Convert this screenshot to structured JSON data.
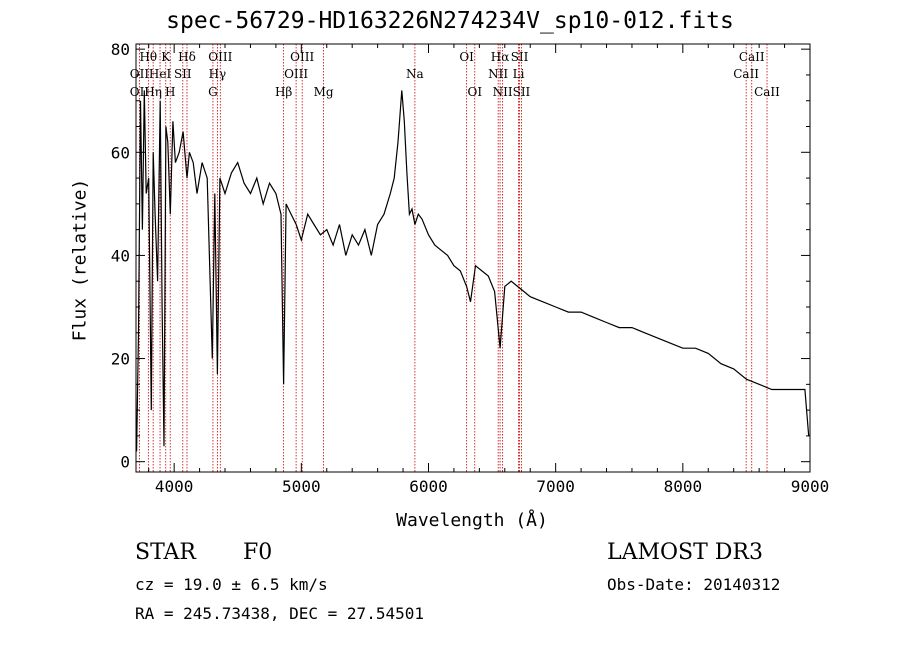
{
  "chart_data": {
    "type": "line",
    "title": "spec-56729-HD163226N274234V_sp10-012.fits",
    "xlabel": "Wavelength (Å)",
    "ylabel": "Flux (relative)",
    "xlim": [
      3700,
      9000
    ],
    "ylim": [
      -2,
      81
    ],
    "x_ticks": [
      4000,
      5000,
      6000,
      7000,
      8000,
      9000
    ],
    "y_ticks": [
      0,
      20,
      40,
      60,
      80
    ],
    "grid": false,
    "line_color": "#000000",
    "marker_color": "#cc0000",
    "series": [
      {
        "x": [
          3705,
          3720,
          3735,
          3750,
          3765,
          3780,
          3800,
          3820,
          3835,
          3850,
          3870,
          3890,
          3905,
          3920,
          3935,
          3950,
          3970,
          3990,
          4010,
          4040,
          4070,
          4101,
          4120,
          4150,
          4180,
          4220,
          4260,
          4300,
          4320,
          4340,
          4360,
          4400,
          4450,
          4500,
          4550,
          4600,
          4650,
          4700,
          4750,
          4800,
          4840,
          4861,
          4880,
          4920,
          4960,
          5000,
          5050,
          5100,
          5150,
          5200,
          5250,
          5300,
          5350,
          5400,
          5450,
          5500,
          5550,
          5600,
          5650,
          5700,
          5730,
          5760,
          5790,
          5810,
          5830,
          5850,
          5870,
          5893,
          5920,
          5950,
          6000,
          6050,
          6100,
          6150,
          6200,
          6250,
          6300,
          6330,
          6370,
          6420,
          6470,
          6520,
          6563,
          6600,
          6650,
          6700,
          6750,
          6800,
          6900,
          7000,
          7100,
          7200,
          7300,
          7400,
          7500,
          7600,
          7700,
          7800,
          7900,
          8000,
          8100,
          8200,
          8300,
          8400,
          8500,
          8600,
          8700,
          8800,
          8900,
          8960,
          8990
        ],
        "y": [
          2,
          25,
          70,
          45,
          72,
          52,
          55,
          10,
          60,
          48,
          35,
          70,
          30,
          3,
          65,
          62,
          48,
          66,
          58,
          60,
          64,
          55,
          60,
          58,
          52,
          58,
          55,
          20,
          52,
          17,
          55,
          52,
          56,
          58,
          54,
          52,
          55,
          50,
          54,
          52,
          48,
          15,
          50,
          48,
          46,
          43,
          48,
          46,
          44,
          45,
          42,
          46,
          40,
          44,
          42,
          45,
          40,
          46,
          48,
          52,
          55,
          62,
          72,
          66,
          56,
          48,
          49,
          46,
          48,
          47,
          44,
          42,
          41,
          40,
          38,
          37,
          34,
          31,
          38,
          37,
          36,
          33,
          22,
          34,
          35,
          34,
          33,
          32,
          31,
          30,
          29,
          29,
          28,
          27,
          26,
          26,
          25,
          24,
          23,
          22,
          22,
          21,
          19,
          18,
          16,
          15,
          14,
          14,
          14,
          14,
          5
        ]
      }
    ],
    "lines": [
      {
        "label": "Hθ",
        "x": 3797,
        "row": 1
      },
      {
        "label": "OII",
        "x": 3727,
        "row": 2
      },
      {
        "label": "OII",
        "x": 3727,
        "row": 3
      },
      {
        "label": "Hη",
        "x": 3835,
        "row": 3
      },
      {
        "label": "HeI",
        "x": 3889,
        "row": 2
      },
      {
        "label": "K",
        "x": 3934,
        "row": 1
      },
      {
        "label": "SII",
        "x": 4068,
        "row": 2
      },
      {
        "label": "H",
        "x": 3969,
        "row": 3
      },
      {
        "label": "Hδ",
        "x": 4101,
        "row": 1
      },
      {
        "label": "OIII",
        "x": 4363,
        "row": 1
      },
      {
        "label": "Hγ",
        "x": 4340,
        "row": 2
      },
      {
        "label": "G",
        "x": 4305,
        "row": 3
      },
      {
        "label": "Hβ",
        "x": 4861,
        "row": 3
      },
      {
        "label": "OIII",
        "x": 4959,
        "row": 2
      },
      {
        "label": "OIII",
        "x": 5007,
        "row": 1
      },
      {
        "label": "Mg",
        "x": 5175,
        "row": 3
      },
      {
        "label": "Na",
        "x": 5893,
        "row": 2
      },
      {
        "label": "OI",
        "x": 6300,
        "row": 1
      },
      {
        "label": "OI",
        "x": 6364,
        "row": 3
      },
      {
        "label": "Hα",
        "x": 6563,
        "row": 1
      },
      {
        "label": "NII",
        "x": 6548,
        "row": 2
      },
      {
        "label": "NII",
        "x": 6583,
        "row": 3
      },
      {
        "label": "SII",
        "x": 6716,
        "row": 1
      },
      {
        "label": "Li",
        "x": 6708,
        "row": 2
      },
      {
        "label": "SII",
        "x": 6731,
        "row": 3
      },
      {
        "label": "CaII",
        "x": 8498,
        "row": 2
      },
      {
        "label": "CaII",
        "x": 8542,
        "row": 1
      },
      {
        "label": "CaII",
        "x": 8662,
        "row": 3
      }
    ]
  },
  "info": {
    "class": "STAR",
    "subclass": "F0",
    "survey": "LAMOST DR3",
    "cz": "cz = 19.0 ± 6.5 km/s",
    "obs_date": "Obs-Date: 20140312",
    "coords": "RA = 245.73438, DEC =  27.54501"
  }
}
